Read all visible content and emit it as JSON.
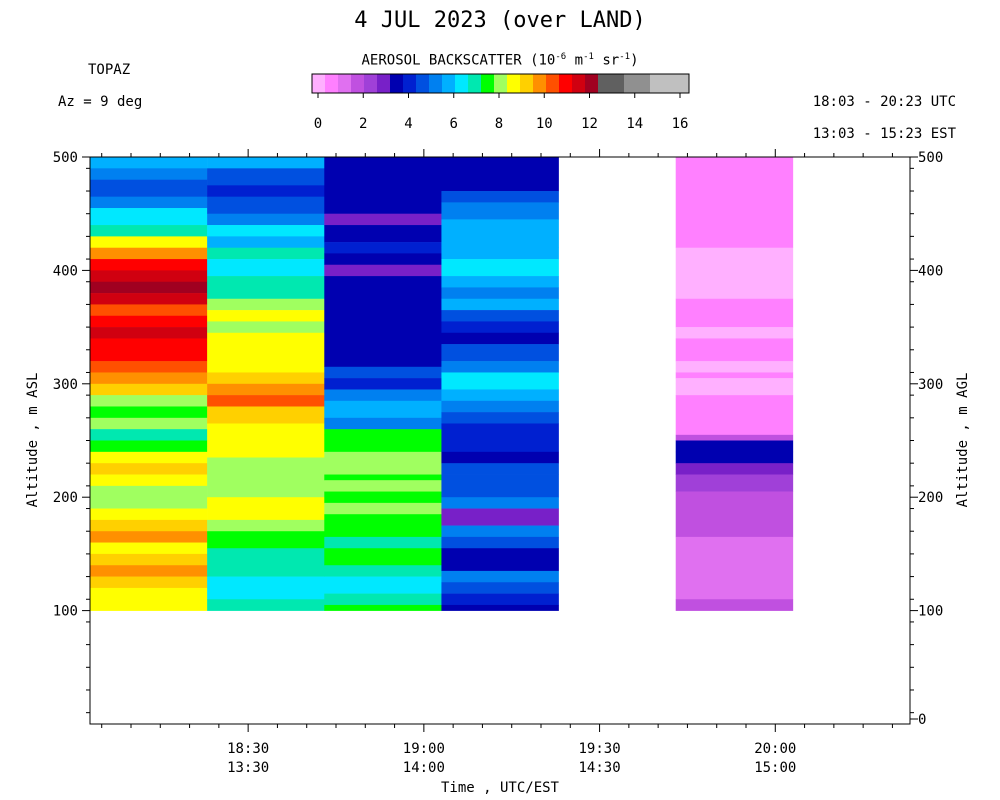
{
  "header": {
    "title": "4 JUL 2023 (over LAND)",
    "instrument": "TOPAZ",
    "azimuth": "Az =   9 deg",
    "utc_range": "18:03 - 20:23 UTC",
    "est_range": "13:03 - 15:23 EST"
  },
  "colorbar": {
    "title_prefix": "AEROSOL BACKSCATTER (10",
    "title_exp1": "-6",
    "title_mid1": " m",
    "title_exp2": "-1",
    "title_mid2": " sr",
    "title_exp3": "-1",
    "title_suffix": ")",
    "ticks": [
      "0",
      "2",
      "4",
      "6",
      "8",
      "10",
      "12",
      "14",
      "16"
    ],
    "colors": [
      "#ffb0ff",
      "#ff80ff",
      "#e070f0",
      "#c050e0",
      "#a040d8",
      "#7820c8",
      "#0000b0",
      "#0020d0",
      "#0050e0",
      "#0080f0",
      "#00b0ff",
      "#00e8ff",
      "#00e8b0",
      "#00ff00",
      "#a0ff60",
      "#ffff00",
      "#ffd000",
      "#ff9000",
      "#ff5000",
      "#ff0000",
      "#d00010",
      "#a00020",
      "#606060",
      "#606060",
      "#909090",
      "#909090",
      "#c0c0c0",
      "#c0c0c0",
      "#c0c0c0"
    ]
  },
  "chart_data": {
    "type": "heatmap",
    "xlabel": "Time , UTC/EST",
    "ylabel_left": "Altitude , m ASL",
    "ylabel_right": "Altitude , m AGL",
    "x_range_utc_min": [
      1083,
      1223
    ],
    "y_range_asl": [
      0,
      500
    ],
    "x_ticks": [
      {
        "utc": "18:30",
        "est": "13:30",
        "min": 1110
      },
      {
        "utc": "19:00",
        "est": "14:00",
        "min": 1140
      },
      {
        "utc": "19:30",
        "est": "14:30",
        "min": 1170
      },
      {
        "utc": "20:00",
        "est": "15:00",
        "min": 1200
      }
    ],
    "y_ticks_left": [
      "100",
      "200",
      "300",
      "400",
      "500"
    ],
    "y_ticks_right": [
      "0",
      "100",
      "200",
      "300",
      "400",
      "500"
    ],
    "profiles": [
      {
        "t0": 1083,
        "t1": 1103,
        "layers": [
          [
            500,
            490,
            "#00b0ff"
          ],
          [
            490,
            480,
            "#0080f0"
          ],
          [
            480,
            465,
            "#0050e0"
          ],
          [
            465,
            455,
            "#0080f0"
          ],
          [
            455,
            440,
            "#00e8ff"
          ],
          [
            440,
            430,
            "#00e8b0"
          ],
          [
            430,
            420,
            "#ffff00"
          ],
          [
            420,
            410,
            "#ff9000"
          ],
          [
            410,
            400,
            "#ff0000"
          ],
          [
            400,
            390,
            "#d00010"
          ],
          [
            390,
            380,
            "#a00020"
          ],
          [
            380,
            370,
            "#d00010"
          ],
          [
            370,
            360,
            "#ff5000"
          ],
          [
            360,
            350,
            "#ff0000"
          ],
          [
            350,
            340,
            "#d00010"
          ],
          [
            340,
            320,
            "#ff0000"
          ],
          [
            320,
            310,
            "#ff5000"
          ],
          [
            310,
            300,
            "#ff9000"
          ],
          [
            300,
            290,
            "#ffd000"
          ],
          [
            290,
            280,
            "#a0ff60"
          ],
          [
            280,
            270,
            "#00ff00"
          ],
          [
            270,
            260,
            "#a0ff60"
          ],
          [
            260,
            250,
            "#00e8b0"
          ],
          [
            250,
            240,
            "#00ff00"
          ],
          [
            240,
            230,
            "#ffff00"
          ],
          [
            230,
            220,
            "#ffd000"
          ],
          [
            220,
            210,
            "#ffff00"
          ],
          [
            210,
            200,
            "#a0ff60"
          ],
          [
            200,
            190,
            "#a0ff60"
          ],
          [
            190,
            180,
            "#ffff00"
          ],
          [
            180,
            170,
            "#ffd000"
          ],
          [
            170,
            160,
            "#ff9000"
          ],
          [
            160,
            150,
            "#ffff00"
          ],
          [
            150,
            140,
            "#ffd000"
          ],
          [
            140,
            130,
            "#ff9000"
          ],
          [
            130,
            120,
            "#ffd000"
          ],
          [
            120,
            110,
            "#ffff00"
          ],
          [
            110,
            100,
            "#ffff00"
          ]
        ]
      },
      {
        "t0": 1103,
        "t1": 1123,
        "layers": [
          [
            500,
            490,
            "#00b0ff"
          ],
          [
            490,
            475,
            "#0050e0"
          ],
          [
            475,
            465,
            "#0020d0"
          ],
          [
            465,
            450,
            "#0050e0"
          ],
          [
            450,
            440,
            "#0080f0"
          ],
          [
            440,
            430,
            "#00e8ff"
          ],
          [
            430,
            420,
            "#00b0ff"
          ],
          [
            420,
            410,
            "#00e8b0"
          ],
          [
            410,
            395,
            "#00e8ff"
          ],
          [
            395,
            375,
            "#00e8b0"
          ],
          [
            375,
            365,
            "#a0ff60"
          ],
          [
            365,
            355,
            "#ffff00"
          ],
          [
            355,
            345,
            "#a0ff60"
          ],
          [
            345,
            310,
            "#ffff00"
          ],
          [
            310,
            300,
            "#ffd000"
          ],
          [
            300,
            290,
            "#ff9000"
          ],
          [
            290,
            280,
            "#ff5000"
          ],
          [
            280,
            265,
            "#ffd000"
          ],
          [
            265,
            235,
            "#ffff00"
          ],
          [
            235,
            220,
            "#a0ff60"
          ],
          [
            220,
            200,
            "#a0ff60"
          ],
          [
            200,
            180,
            "#ffff00"
          ],
          [
            180,
            170,
            "#a0ff60"
          ],
          [
            170,
            155,
            "#00ff00"
          ],
          [
            155,
            130,
            "#00e8b0"
          ],
          [
            130,
            120,
            "#00e8ff"
          ],
          [
            120,
            110,
            "#00e8ff"
          ],
          [
            110,
            100,
            "#00e8b0"
          ]
        ]
      },
      {
        "t0": 1123,
        "t1": 1143,
        "layers": [
          [
            500,
            450,
            "#0000b0"
          ],
          [
            450,
            440,
            "#7820c8"
          ],
          [
            440,
            425,
            "#0000b0"
          ],
          [
            425,
            415,
            "#0020d0"
          ],
          [
            415,
            405,
            "#0000b0"
          ],
          [
            405,
            395,
            "#7820c8"
          ],
          [
            395,
            315,
            "#0000b0"
          ],
          [
            315,
            305,
            "#0050e0"
          ],
          [
            305,
            295,
            "#0020d0"
          ],
          [
            295,
            285,
            "#0080f0"
          ],
          [
            285,
            270,
            "#00b0ff"
          ],
          [
            270,
            260,
            "#0080f0"
          ],
          [
            260,
            255,
            "#00ff00"
          ],
          [
            255,
            240,
            "#00ff00"
          ],
          [
            240,
            220,
            "#a0ff60"
          ],
          [
            220,
            215,
            "#00ff00"
          ],
          [
            215,
            205,
            "#a0ff60"
          ],
          [
            205,
            195,
            "#00ff00"
          ],
          [
            195,
            185,
            "#a0ff60"
          ],
          [
            185,
            165,
            "#00ff00"
          ],
          [
            165,
            155,
            "#00e8b0"
          ],
          [
            155,
            140,
            "#00ff00"
          ],
          [
            140,
            130,
            "#00e8b0"
          ],
          [
            130,
            115,
            "#00e8ff"
          ],
          [
            115,
            105,
            "#00e8b0"
          ],
          [
            105,
            100,
            "#00ff00"
          ]
        ]
      },
      {
        "t0": 1143,
        "t1": 1163,
        "layers": [
          [
            500,
            470,
            "#0000b0"
          ],
          [
            470,
            460,
            "#0050e0"
          ],
          [
            460,
            445,
            "#0080f0"
          ],
          [
            445,
            420,
            "#00b0ff"
          ],
          [
            420,
            410,
            "#00b0ff"
          ],
          [
            410,
            395,
            "#00e8ff"
          ],
          [
            395,
            385,
            "#00b0ff"
          ],
          [
            385,
            375,
            "#0080f0"
          ],
          [
            375,
            365,
            "#00b0ff"
          ],
          [
            365,
            355,
            "#0050e0"
          ],
          [
            355,
            345,
            "#0020d0"
          ],
          [
            345,
            335,
            "#0000b0"
          ],
          [
            335,
            320,
            "#0050e0"
          ],
          [
            320,
            310,
            "#0080f0"
          ],
          [
            310,
            295,
            "#00e8ff"
          ],
          [
            295,
            285,
            "#00b0ff"
          ],
          [
            285,
            275,
            "#0080f0"
          ],
          [
            275,
            265,
            "#0050e0"
          ],
          [
            265,
            240,
            "#0020d0"
          ],
          [
            240,
            230,
            "#0000b0"
          ],
          [
            230,
            220,
            "#0050e0"
          ],
          [
            220,
            200,
            "#0050e0"
          ],
          [
            200,
            190,
            "#0080f0"
          ],
          [
            190,
            175,
            "#7820c8"
          ],
          [
            175,
            165,
            "#0080f0"
          ],
          [
            165,
            155,
            "#0050e0"
          ],
          [
            155,
            135,
            "#0000b0"
          ],
          [
            135,
            125,
            "#0080f0"
          ],
          [
            125,
            115,
            "#0050e0"
          ],
          [
            115,
            105,
            "#0020d0"
          ],
          [
            105,
            100,
            "#0000b0"
          ]
        ]
      },
      {
        "t0": 1183,
        "t1": 1203,
        "layers": [
          [
            500,
            420,
            "#ff80ff"
          ],
          [
            420,
            375,
            "#ffb0ff"
          ],
          [
            375,
            350,
            "#ff80ff"
          ],
          [
            350,
            340,
            "#ffb0ff"
          ],
          [
            340,
            320,
            "#ff80ff"
          ],
          [
            320,
            310,
            "#ffb0ff"
          ],
          [
            310,
            305,
            "#ff80ff"
          ],
          [
            305,
            300,
            "#ffb0ff"
          ],
          [
            300,
            290,
            "#ffb0ff"
          ],
          [
            290,
            255,
            "#ff80ff"
          ],
          [
            255,
            250,
            "#c050e0"
          ],
          [
            250,
            240,
            "#0000b0"
          ],
          [
            240,
            230,
            "#0000b0"
          ],
          [
            230,
            220,
            "#7820c8"
          ],
          [
            220,
            205,
            "#a040d8"
          ],
          [
            205,
            165,
            "#c050e0"
          ],
          [
            165,
            110,
            "#e070f0"
          ],
          [
            110,
            100,
            "#c050e0"
          ]
        ]
      }
    ]
  }
}
